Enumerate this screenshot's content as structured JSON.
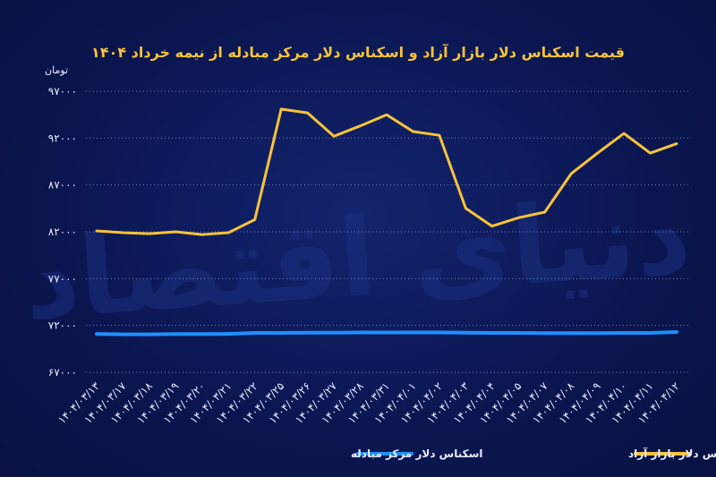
{
  "chart_data": {
    "type": "line",
    "title": "قیمت اسکناس دلار بازار آزاد و اسکناس دلار مرکز مبادله از نیمه خرداد ۱۴۰۴",
    "ylabel": "تومان",
    "xlabel": "",
    "ylim": [
      67000,
      97000
    ],
    "yticks": [
      "۹۷۰۰۰",
      "۹۲۰۰۰",
      "۸۷۰۰۰",
      "۸۲۰۰۰",
      "۷۷۰۰۰",
      "۷۲۰۰۰",
      "۶۷۰۰۰"
    ],
    "ytick_values": [
      97000,
      92000,
      87000,
      82000,
      77000,
      72000,
      67000
    ],
    "grid": true,
    "legend_position": "bottom",
    "categories": [
      "۱۴۰۴/۰۳/۱۳",
      "۱۴۰۴/۰۳/۱۷",
      "۱۴۰۴/۰۳/۱۸",
      "۱۴۰۴/۰۳/۱۹",
      "۱۴۰۴/۰۳/۲۰",
      "۱۴۰۴/۰۳/۲۱",
      "۱۴۰۴/۰۳/۲۲",
      "۱۴۰۴/۰۳/۲۵",
      "۱۴۰۴/۰۳/۲۶",
      "۱۴۰۴/۰۳/۲۷",
      "۱۴۰۴/۰۳/۲۸",
      "۱۴۰۴/۰۳/۳۱",
      "۱۴۰۴/۰۴/۰۱",
      "۱۴۰۴/۰۴/۰۲",
      "۱۴۰۴/۰۴/۰۳",
      "۱۴۰۴/۰۴/۰۴",
      "۱۴۰۴/۰۴/۰۵",
      "۱۴۰۴/۰۴/۰۷",
      "۱۴۰۴/۰۴/۰۸",
      "۱۴۰۴/۰۴/۰۹",
      "۱۴۰۴/۰۴/۱۰",
      "۱۴۰۴/۰۴/۱۱",
      "۱۴۰۴/۰۴/۱۲"
    ],
    "series": [
      {
        "name": "اسکناس دلار بازار آزاد",
        "color": "#f7c33a",
        "values": [
          82100,
          81900,
          81800,
          82000,
          81700,
          81900,
          83300,
          95100,
          94700,
          92200,
          93300,
          94500,
          92700,
          92300,
          84500,
          82600,
          83500,
          84100,
          88200,
          90400,
          92500,
          90400,
          91400
        ]
      },
      {
        "name": "اسکناس دلار مرکز مبادله",
        "color": "#1e90ff",
        "values": [
          71100,
          71050,
          71050,
          71080,
          71080,
          71100,
          71200,
          71200,
          71220,
          71220,
          71250,
          71250,
          71250,
          71250,
          71220,
          71200,
          71200,
          71180,
          71180,
          71180,
          71200,
          71200,
          71300
        ]
      }
    ]
  },
  "watermark": "دنیای اقتصاد"
}
